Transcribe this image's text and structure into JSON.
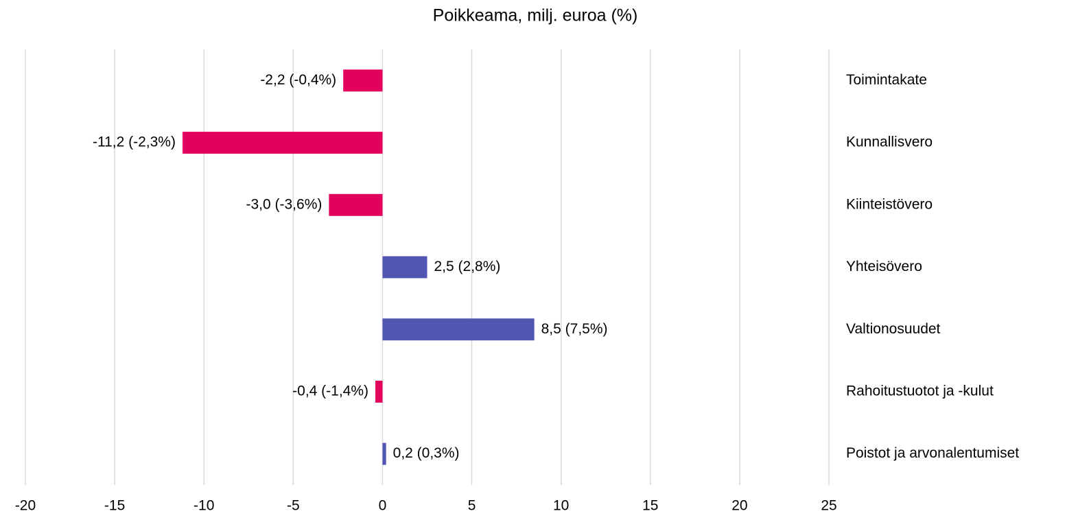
{
  "chart_data": {
    "type": "hbar",
    "title": "Poikkeama, milj. euroa (%)",
    "categories": [
      "Toimintakate",
      "Kunnallisvero",
      "Kiinteistövero",
      "Yhteisövero",
      "Valtionosuudet",
      "Rahoitustuotot ja -kulut",
      "Poistot ja arvonalentumiset"
    ],
    "values": [
      -2.2,
      -11.2,
      -3.0,
      2.5,
      8.5,
      -0.4,
      0.2
    ],
    "value_labels": [
      "-2,2 (-0,4%)",
      "-11,2 (-2,3%)",
      "-3,0 (-3,6%)",
      "2,5 (2,8%)",
      "8,5 (7,5%)",
      "-0,4 (-1,4%)",
      "0,2 (0,3%)"
    ],
    "colors": [
      "#e4005f",
      "#e4005f",
      "#e4005f",
      "#4f57b3",
      "#4f57b3",
      "#e4005f",
      "#4f57b3"
    ],
    "xlim": [
      -20,
      25
    ],
    "xticks": [
      -20,
      -15,
      -10,
      -5,
      0,
      5,
      10,
      15,
      20,
      25
    ],
    "grid": true
  }
}
